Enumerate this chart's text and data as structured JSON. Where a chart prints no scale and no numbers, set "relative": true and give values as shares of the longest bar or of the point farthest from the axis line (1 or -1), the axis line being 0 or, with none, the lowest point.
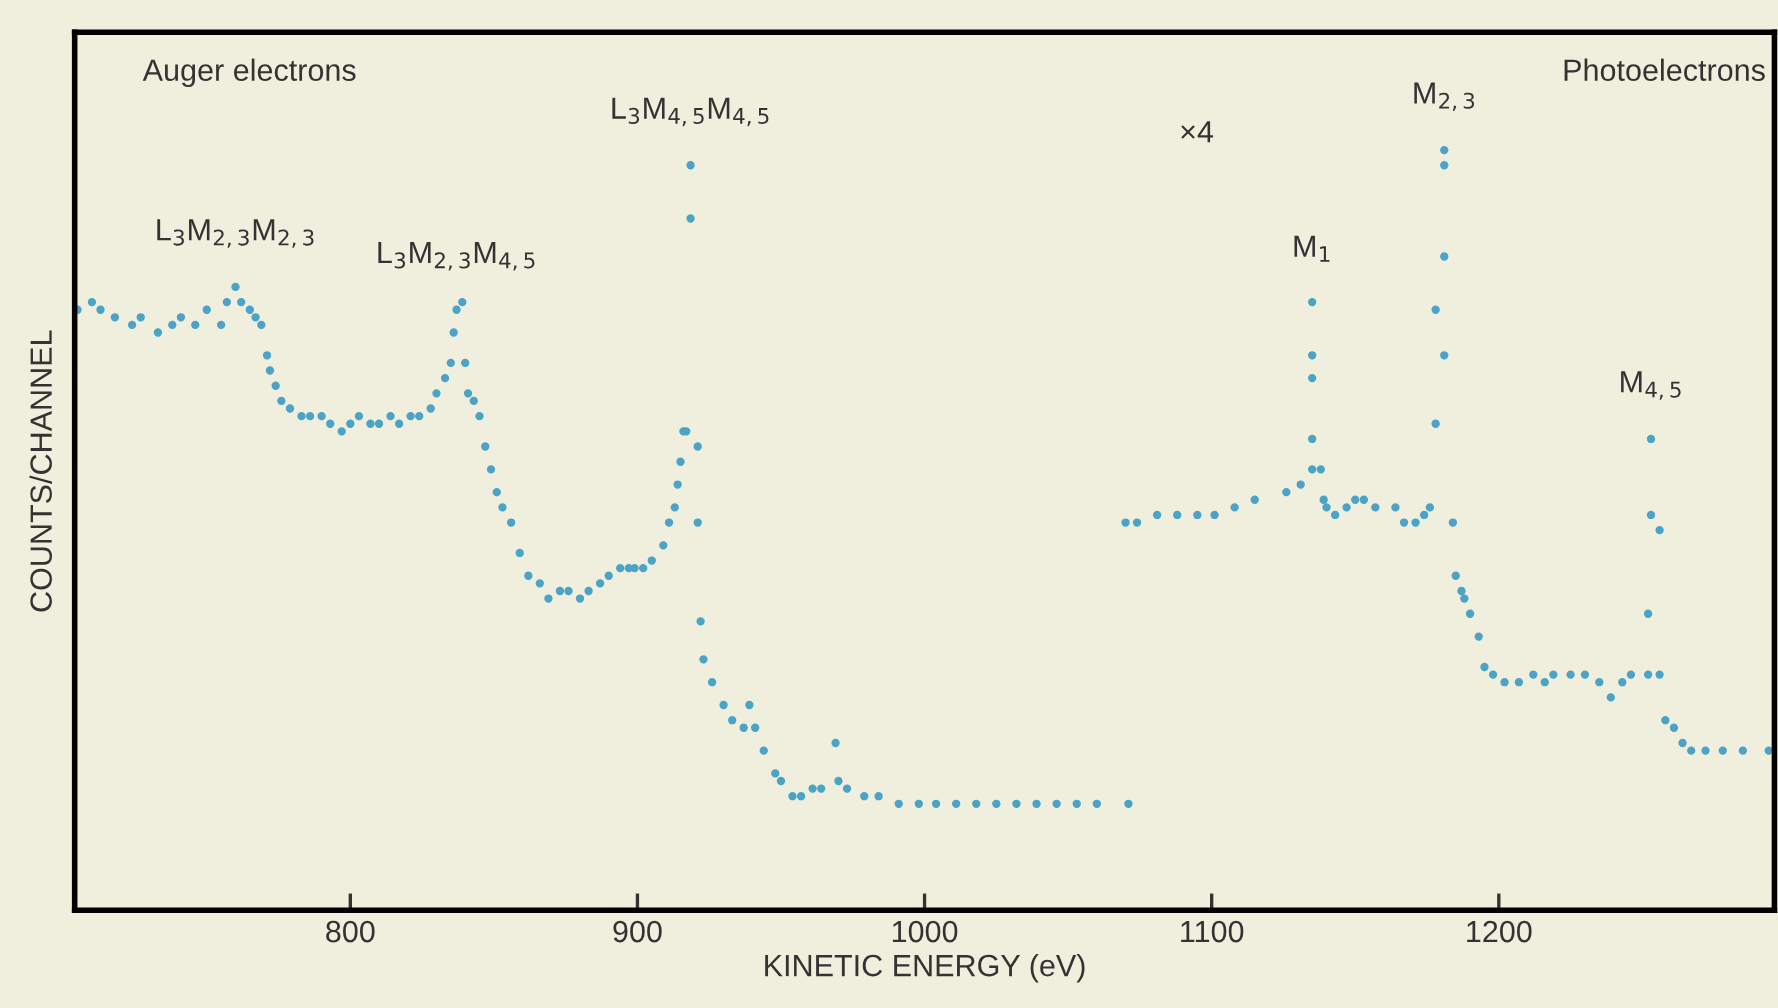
{
  "chart_data": {
    "type": "scatter",
    "relative": true,
    "xlabel": "KINETIC ENERGY (eV)",
    "ylabel": "COUNTS/CHANNEL",
    "xlim": [
      704,
      1296
    ],
    "xticks": [
      800,
      900,
      1000,
      1100,
      1200
    ],
    "grid": false,
    "marker": "circle",
    "annotations": [
      "Auger electrons",
      "×4",
      "Photoelectrons",
      {
        "text": "L$_{3}$M$_{2,3}$M$_{2,3}$",
        "x": 760,
        "y": 0.82
      },
      {
        "text": "L$_{3}$M$_{2,3}$M$_{4,5}$",
        "x": 837,
        "y": 0.79
      },
      {
        "text": "L$_{3}$M$_{4,5}$M$_{4,5}$",
        "x": 918.5,
        "y": 0.98
      },
      {
        "text": "M$_{1}$",
        "x": 1135,
        "y": 0.8
      },
      {
        "text": "M$_{2,3}$",
        "x": 1181,
        "y": 1.0
      },
      {
        "text": "M$_{4,5}$",
        "x": 1253,
        "y": 0.62
      }
    ],
    "series": [
      {
        "color": "#4ba3c7",
        "x": [
          705,
          710,
          713,
          718,
          724,
          727,
          733,
          738,
          741,
          746,
          750,
          755,
          757,
          760,
          762,
          765,
          767,
          769,
          771,
          772,
          774,
          776,
          779,
          783,
          786,
          790,
          793,
          797,
          800,
          803,
          807,
          810,
          814,
          817,
          821,
          824,
          828,
          830,
          833,
          835,
          836,
          837,
          839,
          840,
          841,
          843,
          845,
          847,
          849,
          851,
          853,
          856,
          859,
          862,
          866,
          869,
          873,
          876,
          880,
          883,
          887,
          890,
          894,
          897,
          899,
          902,
          905,
          909,
          911,
          913,
          914,
          915,
          916,
          917,
          918.5,
          918.5,
          921,
          921,
          922,
          923,
          926,
          930,
          933,
          937,
          939,
          941,
          944,
          948,
          950,
          954,
          957,
          961,
          964,
          969,
          970,
          973,
          979,
          984,
          991,
          998,
          1004,
          1011,
          1018,
          1025,
          1032,
          1039,
          1046,
          1053,
          1060,
          1071,
          1070,
          1074,
          1081,
          1088,
          1095,
          1101,
          1108,
          1115,
          1126,
          1131,
          1135,
          1135,
          1135,
          1135,
          1135,
          1138,
          1139,
          1140,
          1143,
          1147,
          1150,
          1153,
          1157,
          1164,
          1167,
          1171,
          1174,
          1176,
          1178,
          1178,
          1181,
          1181,
          1181,
          1181,
          1184,
          1185,
          1187,
          1188,
          1190,
          1193,
          1195,
          1198,
          1202,
          1207,
          1212,
          1216,
          1219,
          1225,
          1230,
          1235,
          1239,
          1243,
          1246,
          1252,
          1252,
          1253,
          1253,
          1256,
          1256,
          1258,
          1261,
          1264,
          1267,
          1272,
          1278,
          1285,
          1294
        ],
        "values": [
          0.79,
          0.8,
          0.79,
          0.78,
          0.77,
          0.78,
          0.76,
          0.77,
          0.78,
          0.77,
          0.79,
          0.77,
          0.8,
          0.82,
          0.8,
          0.79,
          0.78,
          0.77,
          0.73,
          0.71,
          0.69,
          0.67,
          0.66,
          0.65,
          0.65,
          0.65,
          0.64,
          0.63,
          0.64,
          0.65,
          0.64,
          0.64,
          0.65,
          0.64,
          0.65,
          0.65,
          0.66,
          0.68,
          0.7,
          0.72,
          0.76,
          0.79,
          0.8,
          0.72,
          0.68,
          0.67,
          0.65,
          0.61,
          0.58,
          0.55,
          0.53,
          0.51,
          0.47,
          0.44,
          0.43,
          0.41,
          0.42,
          0.42,
          0.41,
          0.42,
          0.43,
          0.44,
          0.45,
          0.45,
          0.45,
          0.45,
          0.46,
          0.48,
          0.51,
          0.53,
          0.56,
          0.59,
          0.63,
          0.63,
          0.98,
          0.91,
          0.61,
          0.51,
          0.38,
          0.33,
          0.3,
          0.27,
          0.25,
          0.24,
          0.27,
          0.24,
          0.21,
          0.18,
          0.17,
          0.15,
          0.15,
          0.16,
          0.16,
          0.22,
          0.17,
          0.16,
          0.15,
          0.15,
          0.14,
          0.14,
          0.14,
          0.14,
          0.14,
          0.14,
          0.14,
          0.14,
          0.14,
          0.14,
          0.14,
          0.14,
          0.51,
          0.51,
          0.52,
          0.52,
          0.52,
          0.52,
          0.53,
          0.54,
          0.55,
          0.56,
          0.8,
          0.73,
          0.7,
          0.62,
          0.58,
          0.58,
          0.54,
          0.53,
          0.52,
          0.53,
          0.54,
          0.54,
          0.53,
          0.53,
          0.51,
          0.51,
          0.52,
          0.53,
          0.64,
          0.79,
          1.0,
          0.98,
          0.86,
          0.73,
          0.51,
          0.44,
          0.42,
          0.41,
          0.39,
          0.36,
          0.32,
          0.31,
          0.3,
          0.3,
          0.31,
          0.3,
          0.31,
          0.31,
          0.31,
          0.3,
          0.28,
          0.3,
          0.31,
          0.31,
          0.39,
          0.62,
          0.52,
          0.5,
          0.31,
          0.25,
          0.24,
          0.22,
          0.21,
          0.21,
          0.21,
          0.21,
          0.21
        ]
      }
    ]
  }
}
